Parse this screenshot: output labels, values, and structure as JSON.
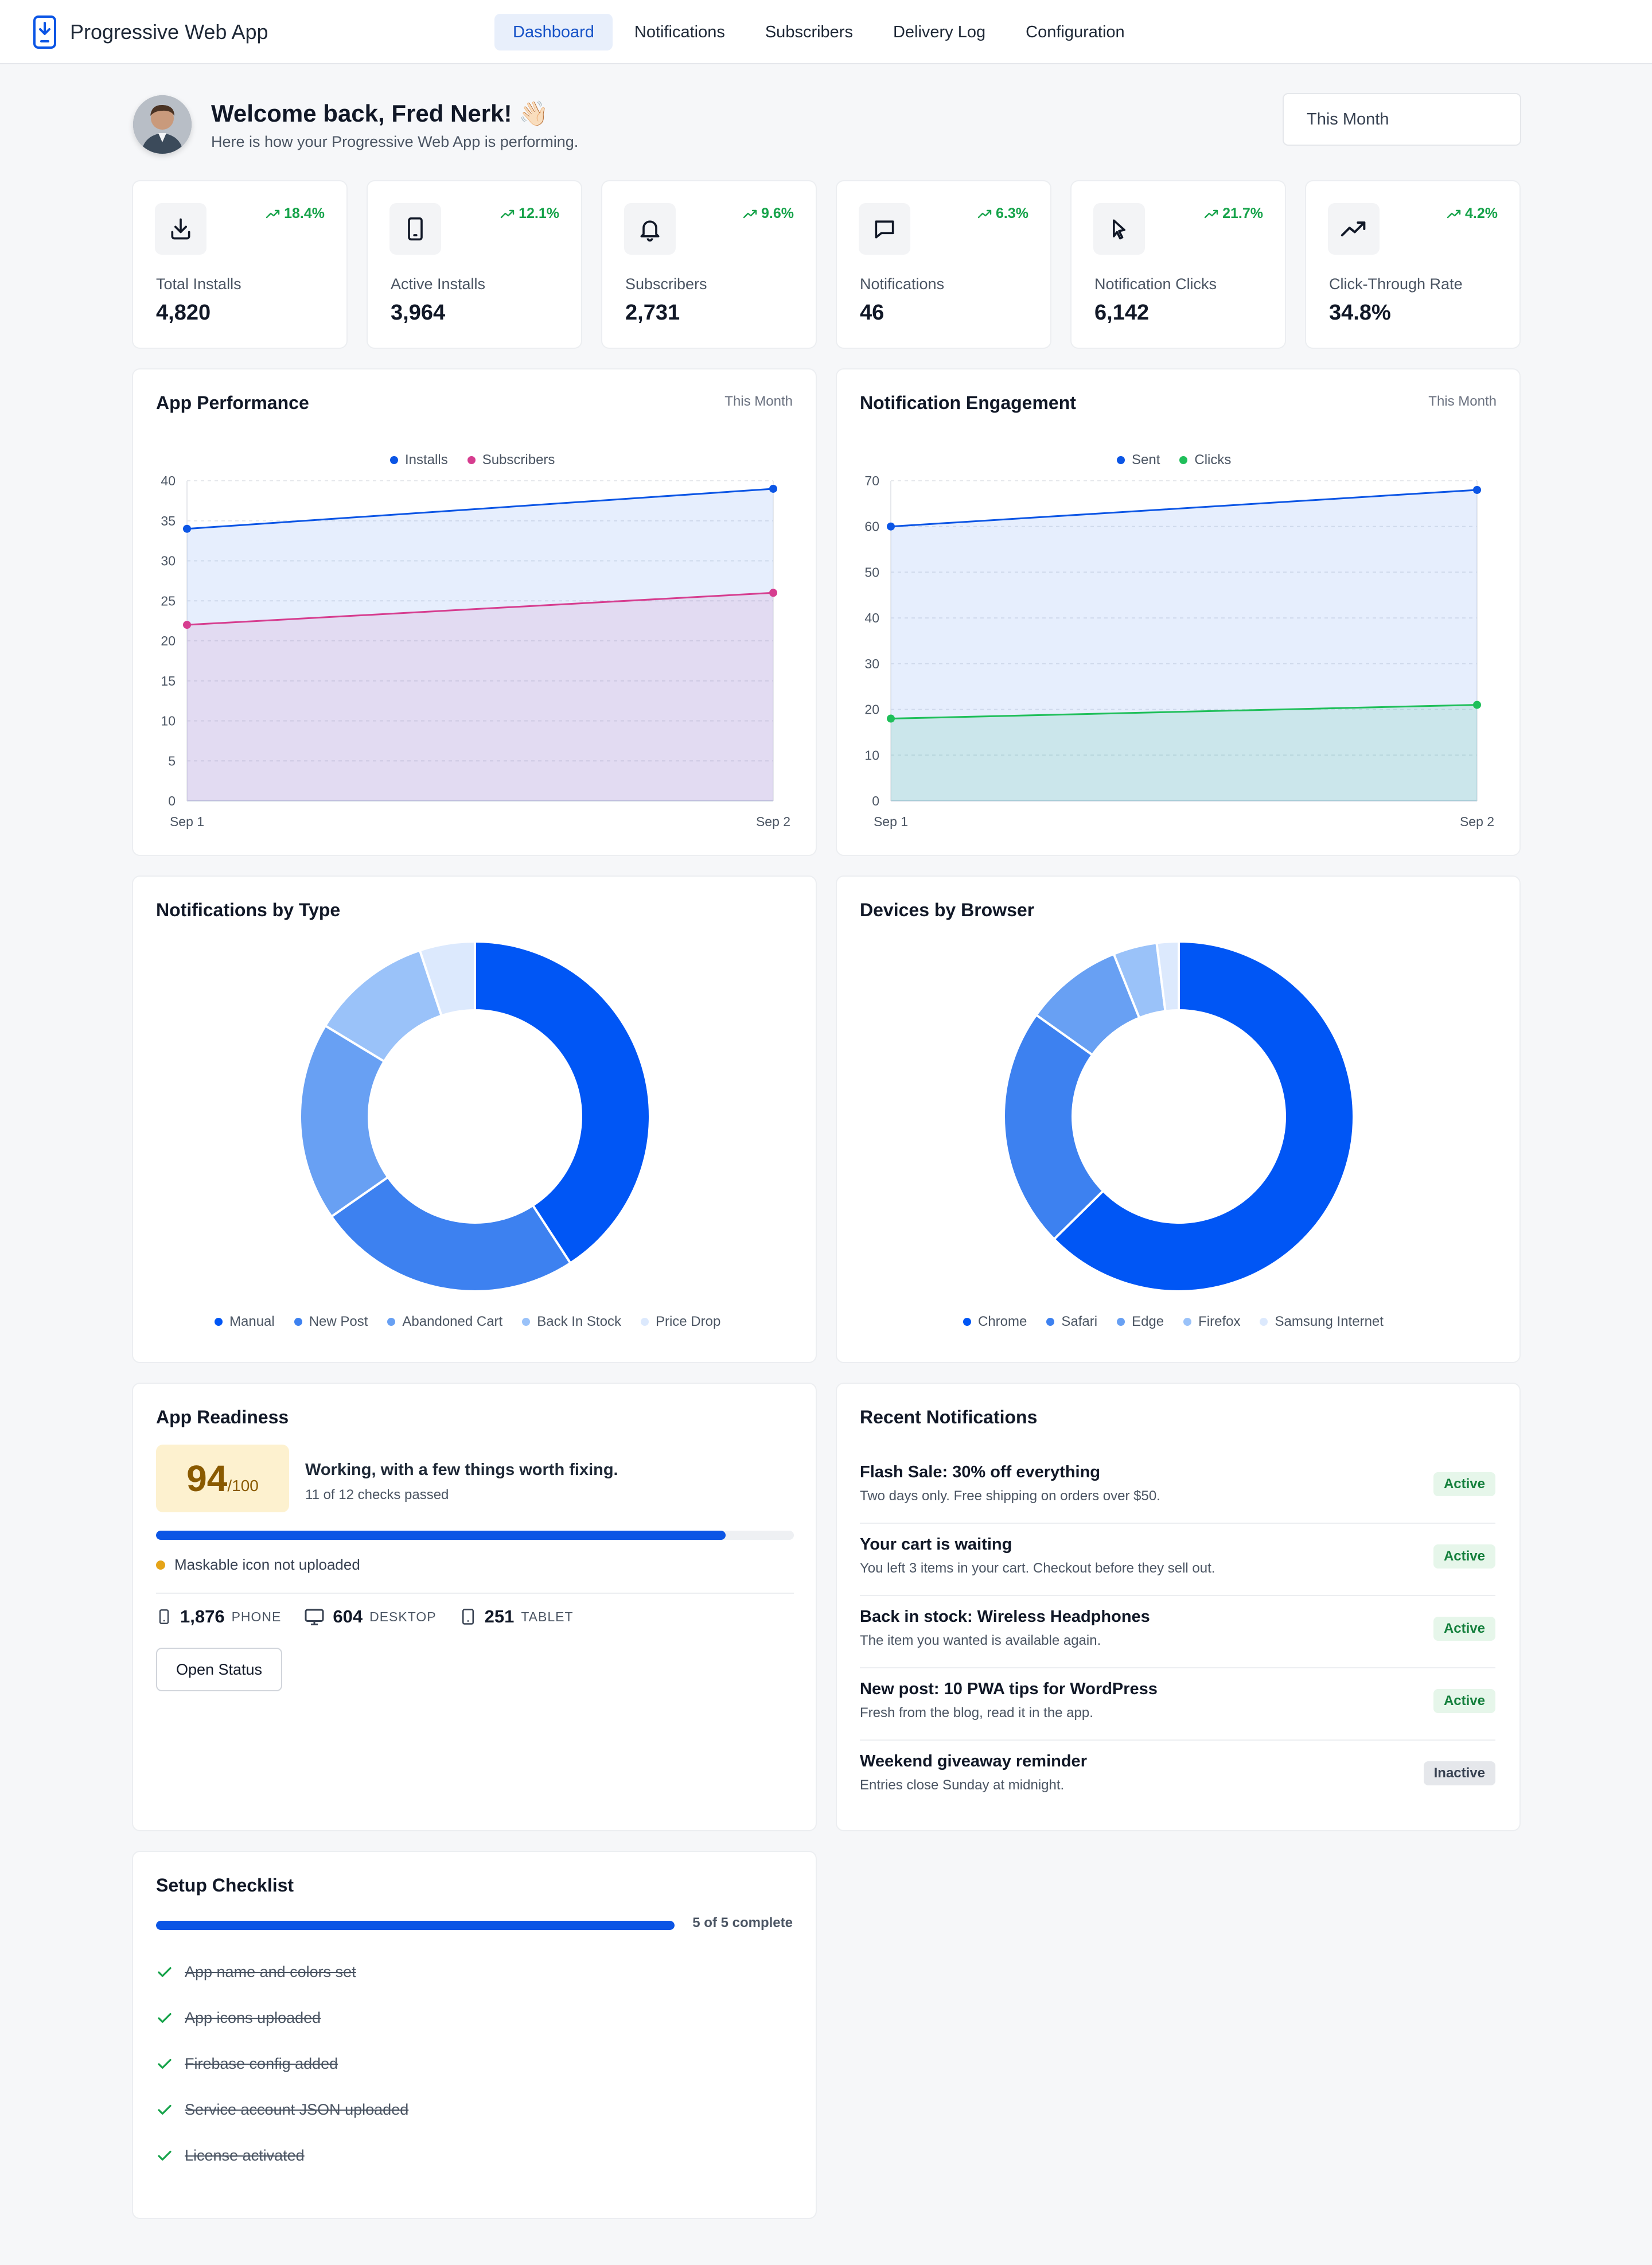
{
  "app": {
    "title": "Progressive Web App"
  },
  "nav": {
    "items": [
      "Dashboard",
      "Notifications",
      "Subscribers",
      "Delivery Log",
      "Configuration"
    ],
    "active": "Dashboard"
  },
  "header": {
    "welcome": "Welcome back, Fred Nerk! 👋🏻",
    "subtitle": "Here is how your Progressive Web App is performing.",
    "period": "This Month"
  },
  "stats": [
    {
      "label": "Total Installs",
      "value": "4,820",
      "trend": "18.4%",
      "icon": "download-icon"
    },
    {
      "label": "Active Installs",
      "value": "3,964",
      "trend": "12.1%",
      "icon": "tablet-icon"
    },
    {
      "label": "Subscribers",
      "value": "2,731",
      "trend": "9.6%",
      "icon": "bell-icon"
    },
    {
      "label": "Notifications",
      "value": "46",
      "trend": "6.3%",
      "icon": "message-icon"
    },
    {
      "label": "Notification Clicks",
      "value": "6,142",
      "trend": "21.7%",
      "icon": "cursor-icon"
    },
    {
      "label": "Click-Through Rate",
      "value": "34.8%",
      "trend": "4.2%",
      "icon": "trending-up-icon"
    }
  ],
  "colors": {
    "accent": "#0b55e5",
    "positive": "#16a34a",
    "pink": "#d63d8f",
    "green": "#1fbf5a",
    "warning": "#e5a418"
  },
  "chart_data": [
    {
      "type": "area",
      "title": "App Performance",
      "period": "This Month",
      "x": [
        "Sep 1",
        "Sep 2"
      ],
      "ylim": [
        0,
        40
      ],
      "yticks": [
        0,
        5,
        10,
        15,
        20,
        25,
        30,
        35,
        40
      ],
      "grid": true,
      "legend": "top",
      "series": [
        {
          "name": "Installs",
          "values": [
            34,
            39
          ],
          "color": "#0b55e5"
        },
        {
          "name": "Subscribers",
          "values": [
            22,
            26
          ],
          "color": "#d63d8f"
        }
      ]
    },
    {
      "type": "area",
      "title": "Notification Engagement",
      "period": "This Month",
      "x": [
        "Sep 1",
        "Sep 2"
      ],
      "ylim": [
        0,
        70
      ],
      "yticks": [
        0,
        10,
        20,
        30,
        40,
        50,
        60,
        70
      ],
      "grid": true,
      "legend": "top",
      "series": [
        {
          "name": "Sent",
          "values": [
            60,
            68
          ],
          "color": "#0b55e5"
        },
        {
          "name": "Clicks",
          "values": [
            18,
            21
          ],
          "color": "#1fbf5a"
        }
      ]
    },
    {
      "type": "pie",
      "title": "Notifications by Type",
      "legend": "bottom",
      "categories": [
        "Manual",
        "New Post",
        "Abandoned Cart",
        "Back In Stock",
        "Price Drop"
      ],
      "values": [
        40,
        24,
        18,
        11,
        5
      ],
      "colors": [
        "#0056f5",
        "#3d81f0",
        "#68a0f3",
        "#9ac2f9",
        "#dce9fd"
      ]
    },
    {
      "type": "pie",
      "title": "Devices by Browser",
      "legend": "bottom",
      "categories": [
        "Chrome",
        "Safari",
        "Edge",
        "Firefox",
        "Samsung Internet"
      ],
      "values": [
        62,
        22,
        9,
        4,
        2
      ],
      "colors": [
        "#0056f5",
        "#3d81f0",
        "#68a0f3",
        "#9ac2f9",
        "#dce9fd"
      ]
    }
  ],
  "readiness": {
    "title": "App Readiness",
    "score": "94",
    "max": "/100",
    "score_fraction": 0.94,
    "status": "Working, with a few things worth fixing.",
    "checks": "11 of 12 checks passed",
    "warning": "Maskable icon not uploaded",
    "devices": [
      {
        "count": "1,876",
        "label": "PHONE",
        "icon": "phone-icon"
      },
      {
        "count": "604",
        "label": "DESKTOP",
        "icon": "monitor-icon"
      },
      {
        "count": "251",
        "label": "TABLET",
        "icon": "tablet-icon"
      }
    ],
    "button": "Open Status"
  },
  "recent": {
    "title": "Recent Notifications",
    "items": [
      {
        "title": "Flash Sale: 30% off everything",
        "desc": "Two days only. Free shipping on orders over $50.",
        "status": "Active"
      },
      {
        "title": "Your cart is waiting",
        "desc": "You left 3 items in your cart. Checkout before they sell out.",
        "status": "Active"
      },
      {
        "title": "Back in stock: Wireless Headphones",
        "desc": "The item you wanted is available again.",
        "status": "Active"
      },
      {
        "title": "New post: 10 PWA tips for WordPress",
        "desc": "Fresh from the blog, read it in the app.",
        "status": "Active"
      },
      {
        "title": "Weekend giveaway reminder",
        "desc": "Entries close Sunday at midnight.",
        "status": "Inactive"
      }
    ]
  },
  "checklist": {
    "title": "Setup Checklist",
    "progress_text": "5 of 5 complete",
    "progress_fraction": 1.0,
    "items": [
      "App name and colors set",
      "App icons uploaded",
      "Firebase config added",
      "Service account JSON uploaded",
      "License activated"
    ]
  }
}
